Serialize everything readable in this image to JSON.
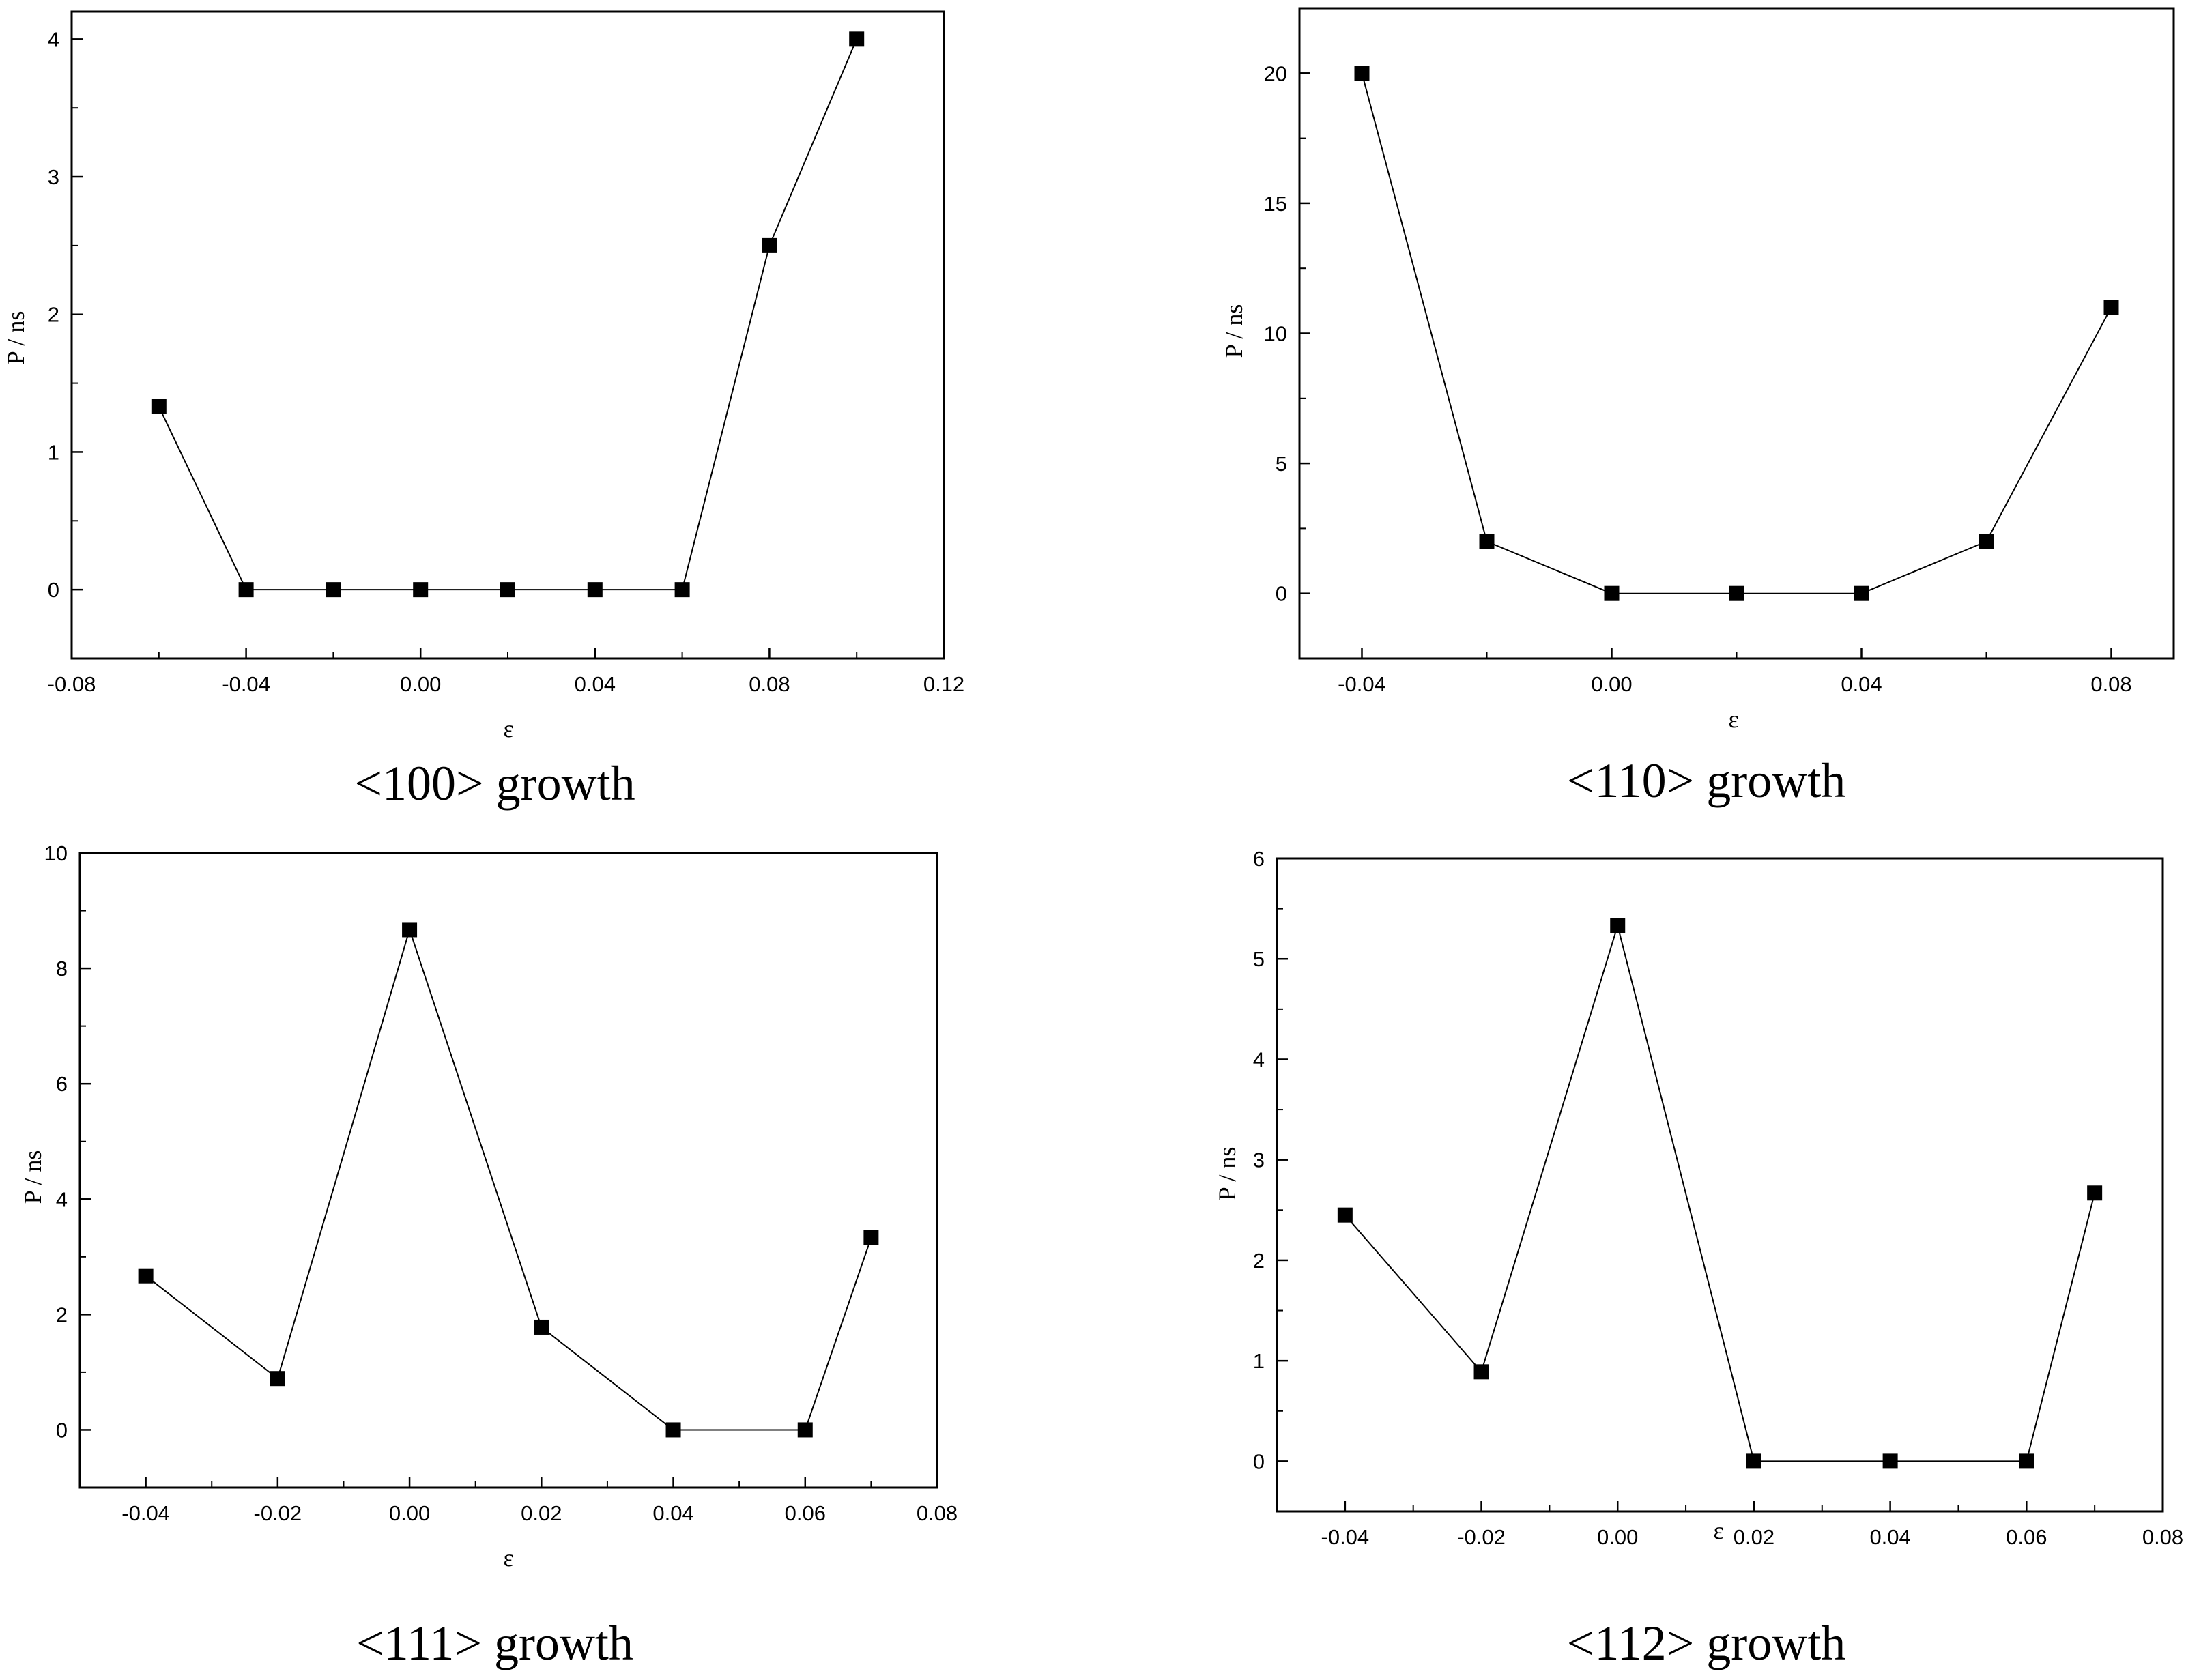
{
  "chart_data": [
    {
      "type": "line",
      "title": "<100> growth",
      "xlabel": "ε",
      "ylabel": "P / ns",
      "xlim": [
        -0.08,
        0.12
      ],
      "ylim": [
        -0.5,
        4.2
      ],
      "xticks": [
        -0.08,
        -0.04,
        0.0,
        0.04,
        0.08,
        0.12
      ],
      "xtick_labels": [
        "-0.08",
        "-0.04",
        "0.00",
        "0.04",
        "0.08",
        "0.12"
      ],
      "yticks": [
        0,
        1,
        2,
        3,
        4
      ],
      "ytick_labels": [
        "0",
        "1",
        "2",
        "3",
        "4"
      ],
      "x": [
        -0.06,
        -0.04,
        -0.02,
        0.0,
        0.02,
        0.04,
        0.06,
        0.08,
        0.1
      ],
      "values": [
        1.33,
        0,
        0,
        0,
        0,
        0,
        0,
        2.5,
        4.0
      ],
      "grid": false,
      "marker": "square"
    },
    {
      "type": "line",
      "title": "<110> growth",
      "xlabel": "ε",
      "ylabel": "P / ns",
      "xlim": [
        -0.05,
        0.09
      ],
      "ylim": [
        -2.5,
        22.5
      ],
      "xticks": [
        -0.04,
        0.0,
        0.04,
        0.08
      ],
      "xtick_labels": [
        "-0.04",
        "0.00",
        "0.04",
        "0.08"
      ],
      "yticks": [
        0,
        5,
        10,
        15,
        20
      ],
      "ytick_labels": [
        "0",
        "5",
        "10",
        "15",
        "20"
      ],
      "x": [
        -0.04,
        -0.02,
        0.0,
        0.02,
        0.04,
        0.06,
        0.08
      ],
      "values": [
        20,
        2,
        0,
        0,
        0,
        2,
        11
      ],
      "grid": false,
      "marker": "square"
    },
    {
      "type": "line",
      "title": "<111> growth",
      "xlabel": "ε",
      "ylabel": "P / ns",
      "xlim": [
        -0.05,
        0.08
      ],
      "ylim": [
        -1,
        10
      ],
      "xticks": [
        -0.04,
        -0.02,
        0.0,
        0.02,
        0.04,
        0.06,
        0.08
      ],
      "xtick_labels": [
        "-0.04",
        "-0.02",
        "0.00",
        "0.02",
        "0.04",
        "0.06",
        "0.08"
      ],
      "yticks": [
        0,
        2,
        4,
        6,
        8,
        10
      ],
      "ytick_labels": [
        "0",
        "2",
        "4",
        "6",
        "8",
        "10"
      ],
      "x": [
        -0.04,
        -0.02,
        0.0,
        0.02,
        0.04,
        0.06,
        0.07
      ],
      "values": [
        2.67,
        0.89,
        8.67,
        1.78,
        0,
        0,
        3.33
      ],
      "grid": false,
      "marker": "square"
    },
    {
      "type": "line",
      "title": "<112> growth",
      "xlabel": "ε",
      "ylabel": "P / ns",
      "xlim": [
        -0.05,
        0.08
      ],
      "ylim": [
        -0.5,
        6
      ],
      "xticks": [
        -0.04,
        -0.02,
        0.0,
        0.02,
        0.04,
        0.06,
        0.08
      ],
      "xtick_labels": [
        "-0.04",
        "-0.02",
        "0.00",
        "0.02",
        "0.04",
        "0.06",
        "0.08"
      ],
      "yticks": [
        0,
        1,
        2,
        3,
        4,
        5,
        6
      ],
      "ytick_labels": [
        "0",
        "1",
        "2",
        "3",
        "4",
        "5",
        "6"
      ],
      "x": [
        -0.04,
        -0.02,
        0.0,
        0.02,
        0.04,
        0.06,
        0.07
      ],
      "values": [
        2.45,
        0.89,
        5.33,
        0,
        0,
        0,
        2.67
      ],
      "grid": false,
      "marker": "square"
    }
  ],
  "colors": {
    "line": "#000000",
    "marker": "#000000",
    "axes": "#000000"
  }
}
